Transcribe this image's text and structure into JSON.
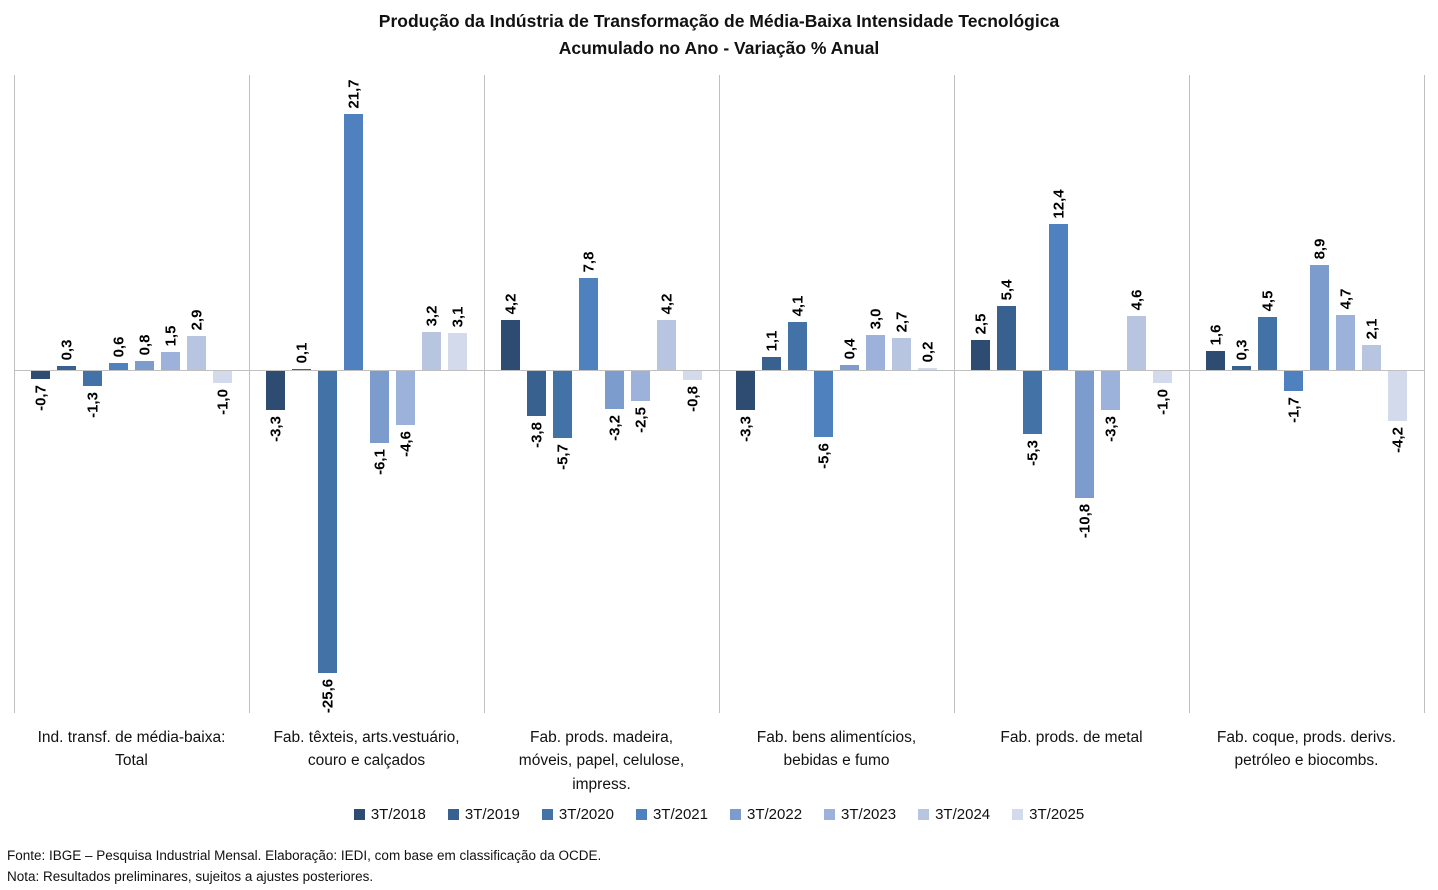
{
  "title": {
    "line1": "Produção da Indústria de Transformação de Média-Baixa Intensidade Tecnológica",
    "line2": "Acumulado no Ano - Variação % Anual"
  },
  "chart_data": {
    "type": "bar",
    "title": "Produção da Indústria de Transformação de Média-Baixa Intensidade Tecnológica",
    "subtitle": "Acumulado no Ano - Variação % Anual",
    "categories": [
      "Ind. transf. de média-baixa: Total",
      "Fab. têxteis, arts.vestuário, couro e calçados",
      "Fab. prods. madeira, móveis, papel, celulose, impress.",
      "Fab. bens alimentícios, bebidas e fumo",
      "Fab. prods. de metal",
      "Fab. coque, prods. derivs. petróleo e biocombs."
    ],
    "series": [
      {
        "name": "3T/2018",
        "color": "#2E4C72",
        "values": [
          -0.7,
          -3.3,
          4.2,
          -3.3,
          2.5,
          1.6
        ]
      },
      {
        "name": "3T/2019",
        "color": "#39618F",
        "values": [
          0.3,
          0.1,
          -3.8,
          1.1,
          5.4,
          0.3
        ]
      },
      {
        "name": "3T/2020",
        "color": "#4372A6",
        "values": [
          -1.3,
          -25.6,
          -5.7,
          4.1,
          -5.3,
          4.5
        ]
      },
      {
        "name": "3T/2021",
        "color": "#4E81BD",
        "values": [
          0.6,
          21.7,
          7.8,
          -5.6,
          12.4,
          -1.7
        ]
      },
      {
        "name": "3T/2022",
        "color": "#7B9CCD",
        "values": [
          0.8,
          -6.1,
          -3.2,
          0.4,
          -10.8,
          8.9
        ]
      },
      {
        "name": "3T/2023",
        "color": "#9CB2DA",
        "values": [
          1.5,
          -4.6,
          -2.5,
          3.0,
          -3.3,
          4.7
        ]
      },
      {
        "name": "3T/2024",
        "color": "#B8C5E1",
        "values": [
          2.9,
          3.2,
          4.2,
          2.7,
          4.6,
          2.1
        ]
      },
      {
        "name": "3T/2025",
        "color": "#D2DAEB",
        "values": [
          -1.0,
          3.1,
          -0.8,
          0.2,
          -1.0,
          -4.2
        ]
      }
    ],
    "ylim": [
      -29,
      25
    ],
    "grid": "vertical-panel-separators",
    "legend_position": "bottom",
    "decimal_separator": ",",
    "value_labels": "rotated-90-degrees",
    "axis_color": "#C0C0C0"
  },
  "footer": {
    "fonte": "Fonte: IBGE – Pesquisa Industrial Mensal. Elaboração: IEDI, com base em classificação da OCDE.",
    "nota": "Nota: Resultados preliminares, sujeitos a ajustes posteriores."
  }
}
